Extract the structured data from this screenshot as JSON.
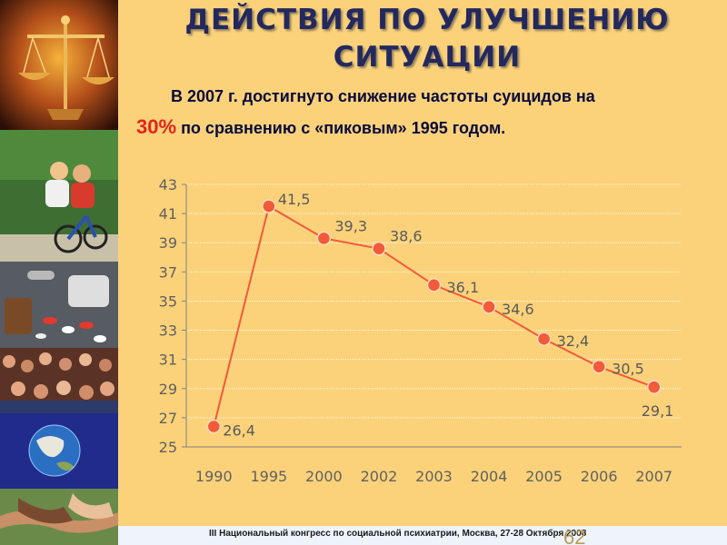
{
  "slide": {
    "title_line1": "ДЕЙСТВИЯ ПО УЛУЧШЕНИЮ",
    "title_line2": "СИТУАЦИИ",
    "subtitle_part1": "В 2007 г. достигнуто снижение частоты суицидов на",
    "subtitle_percent": "30%",
    "subtitle_part2": "по сравнению с «пиковым» 1995 годом.",
    "footer": "III Национальный конгресс по социальной психиатрии, Москва, 27-28 Октября 2008",
    "page_number": "62"
  },
  "sidebar": [
    {
      "name": "scales-image"
    },
    {
      "name": "children-bicycle-image"
    },
    {
      "name": "pills-image"
    },
    {
      "name": "crowd-image"
    },
    {
      "name": "globe-image"
    },
    {
      "name": "hands-image"
    }
  ],
  "colors": {
    "background": "#fbd27a",
    "title": "#23285e",
    "accent": "#e3241b",
    "line": "#f05a3c",
    "marker": "#f25a3a",
    "axis_text": "#606060"
  },
  "chart_data": {
    "type": "line",
    "categories": [
      "1990",
      "1995",
      "2000",
      "2002",
      "2003",
      "2004",
      "2005",
      "2006",
      "2007"
    ],
    "values": [
      26.4,
      41.5,
      39.3,
      38.6,
      36.1,
      34.6,
      32.4,
      30.5,
      29.1
    ],
    "data_labels": [
      "26,4",
      "41,5",
      "39,3",
      "38,6",
      "36,1",
      "34,6",
      "32,4",
      "30,5",
      "29,1"
    ],
    "yticks": [
      25,
      27,
      29,
      31,
      33,
      35,
      37,
      39,
      41,
      43
    ],
    "ylim": [
      25,
      43
    ],
    "title": "",
    "xlabel": "",
    "ylabel": "",
    "grid": true,
    "legend": "none"
  }
}
